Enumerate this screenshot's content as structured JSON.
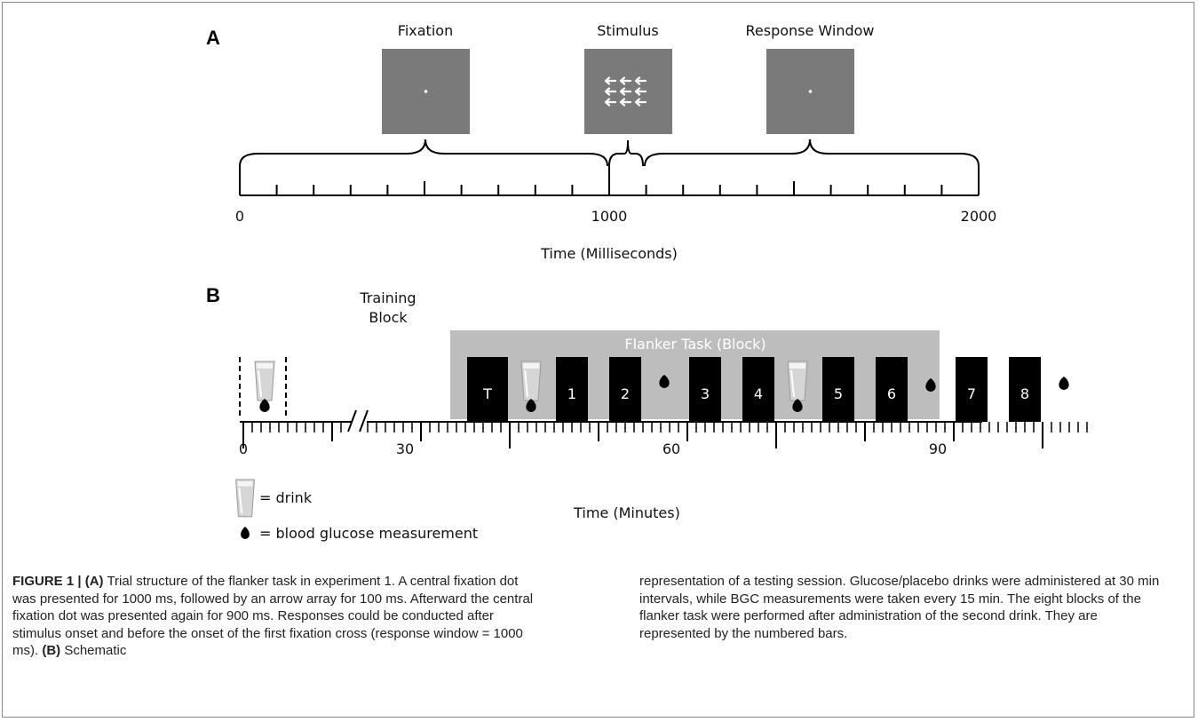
{
  "panel_a": {
    "letter": "A",
    "screens": [
      {
        "label": "Fixation",
        "content": "dot"
      },
      {
        "label": "Stimulus",
        "content": "arrows"
      },
      {
        "label": "Response Window",
        "content": "dot"
      }
    ],
    "axis": {
      "ticks": [
        "0",
        "1000",
        "2000"
      ],
      "title": "Time (Milliseconds)",
      "min": 0,
      "max": 2000
    },
    "phases": [
      {
        "name": "Fixation",
        "start": 0,
        "end": 1000
      },
      {
        "name": "Stimulus",
        "start": 1000,
        "end": 1100
      },
      {
        "name": "Response Window",
        "start": 1100,
        "end": 2000
      }
    ]
  },
  "panel_b": {
    "letter": "B",
    "training_label_line1": "Training",
    "training_label_line2": "Block",
    "flanker_label": "Flanker Task (Block)",
    "training_block": {
      "label": "T",
      "start": 25,
      "end": 30
    },
    "blocks": [
      {
        "label": "1",
        "start": 35,
        "end": 39
      },
      {
        "label": "2",
        "start": 41,
        "end": 45
      },
      {
        "label": "3",
        "start": 50,
        "end": 54
      },
      {
        "label": "4",
        "start": 56,
        "end": 60
      },
      {
        "label": "5",
        "start": 65,
        "end": 69
      },
      {
        "label": "6",
        "start": 71,
        "end": 75
      },
      {
        "label": "7",
        "start": 80,
        "end": 84
      },
      {
        "label": "8",
        "start": 86,
        "end": 90
      }
    ],
    "drinks_min": [
      3,
      33,
      63
    ],
    "glucose_min": [
      3,
      33,
      48,
      63,
      78,
      93
    ],
    "axis": {
      "ticks": [
        "0",
        "30",
        "60",
        "90"
      ],
      "title": "Time (Minutes)",
      "min": 0,
      "max": 95
    },
    "legend": {
      "drink": "= drink",
      "glucose": "= blood glucose measurement"
    }
  },
  "caption": {
    "figure_label": "FIGURE 1 |",
    "part_a_label": "(A)",
    "part_a_text": " Trial structure of the flanker task in experiment 1. A central fixation dot was presented for 1000 ms, followed by an arrow array for 100 ms. Afterward the central fixation dot was presented again for 900 ms. Responses could be conducted after stimulus onset and before the onset of the first fixation cross (response window = 1000 ms).",
    "part_b_label": "(B)",
    "part_b_text_left": " Schematic",
    "part_b_text_right": "representation of a testing session. Glucose/placebo drinks were administered at 30 min intervals, while BGC measurements were taken every 15 min. The eight blocks of the flanker task were performed after administration of the second drink. They are represented by the numbered bars."
  }
}
